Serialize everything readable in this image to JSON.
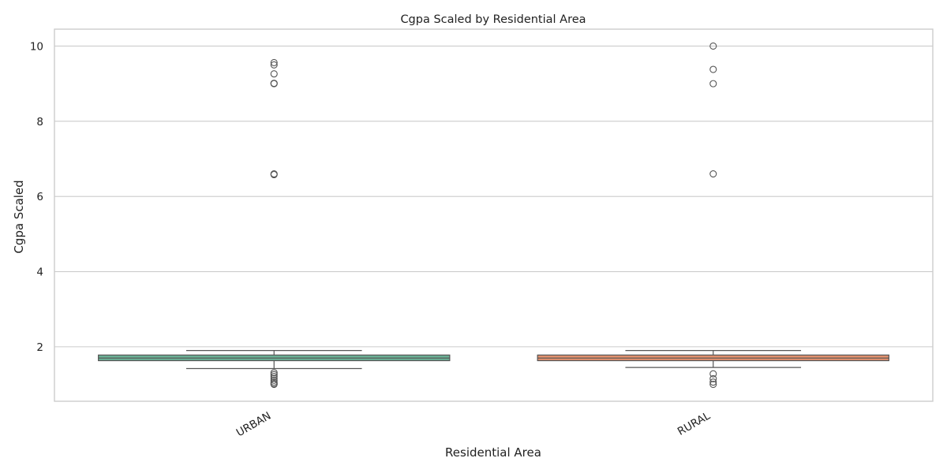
{
  "chart_data": {
    "type": "box",
    "title": "Cgpa Scaled by Residential Area",
    "xlabel": "Residential Area",
    "ylabel": "Cgpa Scaled",
    "ylim": [
      0.55,
      10.45
    ],
    "yticks": [
      2,
      4,
      6,
      8,
      10
    ],
    "grid": true,
    "legend": "none",
    "categories": [
      "URBAN",
      "RURAL"
    ],
    "series": [
      {
        "category": "URBAN",
        "color": "#6aaf94",
        "whisker_low": 1.42,
        "q1": 1.63,
        "median": 1.7,
        "q3": 1.78,
        "whisker_high": 1.9,
        "outliers": [
          9.56,
          9.5,
          9.26,
          9.01,
          9.0,
          6.6,
          6.58,
          1.31,
          1.26,
          1.21,
          1.16,
          1.11,
          1.06,
          1.02,
          1.0
        ]
      },
      {
        "category": "RURAL",
        "color": "#e1906e",
        "whisker_low": 1.45,
        "q1": 1.63,
        "median": 1.7,
        "q3": 1.78,
        "whisker_high": 1.9,
        "outliers": [
          10.0,
          9.38,
          9.0,
          6.6,
          1.28,
          1.15,
          1.06,
          1.0
        ]
      }
    ]
  }
}
